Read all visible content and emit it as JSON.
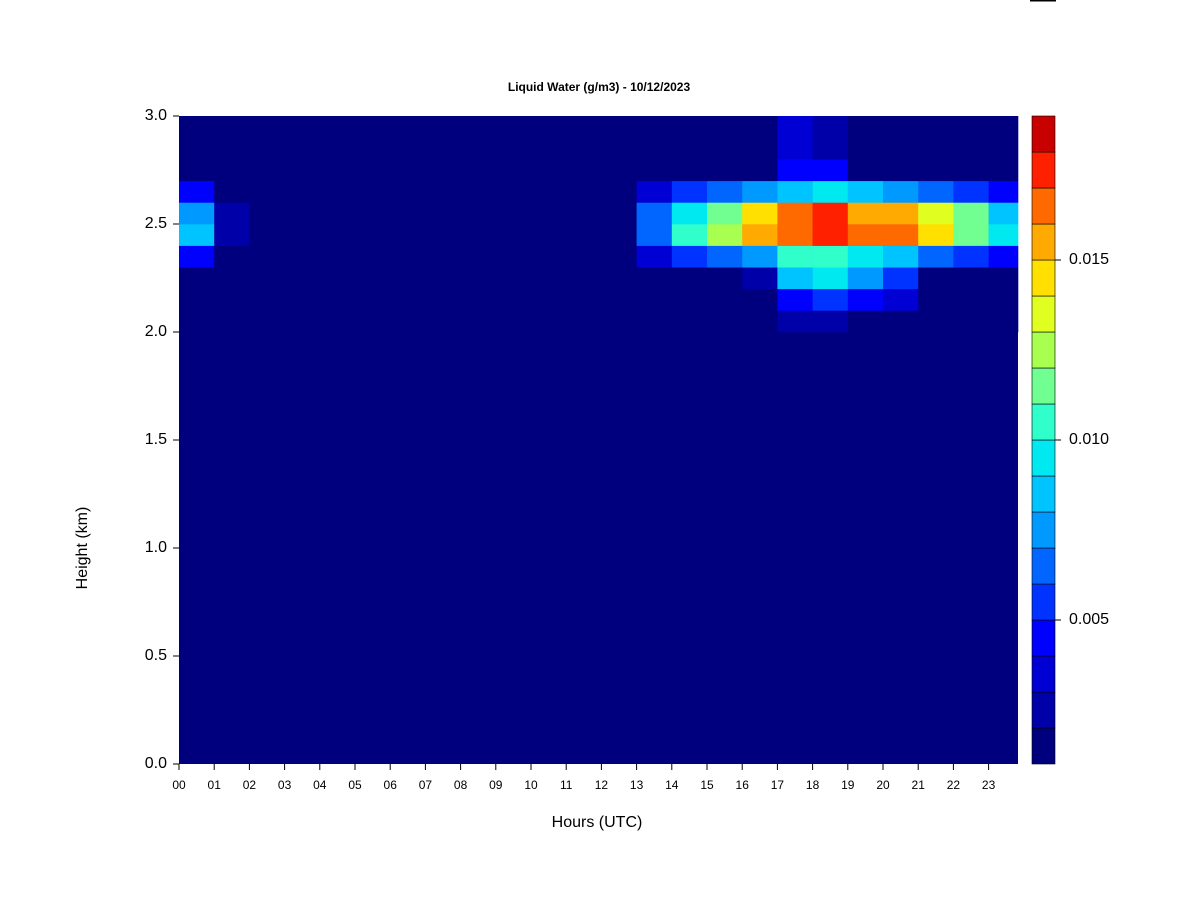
{
  "chart_data": {
    "type": "heatmap",
    "title": "Liquid Water (g/m3) - 10/12/2023",
    "xlabel": "Hours (UTC)",
    "ylabel": "Height (km)",
    "xlim": [
      0,
      23.85
    ],
    "ylim": [
      0,
      3
    ],
    "xticks": [
      {
        "value": 0,
        "label": "00"
      },
      {
        "value": 1,
        "label": "01"
      },
      {
        "value": 2,
        "label": "02"
      },
      {
        "value": 3,
        "label": "03"
      },
      {
        "value": 4,
        "label": "04"
      },
      {
        "value": 5,
        "label": "05"
      },
      {
        "value": 6,
        "label": "06"
      },
      {
        "value": 7,
        "label": "07"
      },
      {
        "value": 8,
        "label": "08"
      },
      {
        "value": 9,
        "label": "09"
      },
      10,
      11,
      12,
      13,
      14,
      15,
      16,
      17,
      18,
      19,
      20,
      21,
      22,
      23
    ],
    "yticks": [
      {
        "value": 0,
        "label": "0.0"
      },
      0.5,
      {
        "value": 1,
        "label": "1.0"
      },
      1.5,
      {
        "value": 2,
        "label": "2.0"
      },
      2.5,
      {
        "value": 3,
        "label": "3.0"
      }
    ],
    "xbins": [
      0,
      1,
      2,
      3,
      4,
      5,
      6,
      7,
      8,
      9,
      10,
      11,
      12,
      13,
      14,
      15,
      16,
      17,
      18,
      19,
      20,
      21,
      22,
      23,
      23.85
    ],
    "ybins": [
      2.0,
      2.1,
      2.2,
      2.3,
      2.4,
      2.5,
      2.6,
      2.7,
      2.8,
      2.9,
      3.0
    ],
    "z": [
      [
        0,
        0,
        0,
        0,
        0,
        0,
        0,
        0,
        0,
        0,
        0,
        0,
        0,
        0,
        0,
        0,
        0,
        0.002,
        0.002,
        0.0015,
        0.0015,
        0,
        0,
        0
      ],
      [
        0,
        0,
        0,
        0,
        0,
        0,
        0,
        0,
        0,
        0,
        0,
        0,
        0,
        0,
        0,
        0,
        0,
        0.004,
        0.005,
        0.004,
        0.003,
        0,
        0,
        0
      ],
      [
        0,
        0,
        0,
        0,
        0,
        0,
        0,
        0,
        0,
        0,
        0,
        0,
        0,
        0,
        0.0015,
        0.0015,
        0.002,
        0.008,
        0.009,
        0.007,
        0.005,
        0.0015,
        0.0015,
        0.0015
      ],
      [
        0.004,
        0.001,
        0,
        0,
        0,
        0,
        0,
        0,
        0,
        0,
        0,
        0,
        0,
        0.003,
        0.005,
        0.006,
        0.007,
        0.01,
        0.01,
        0.009,
        0.008,
        0.006,
        0.005,
        0.004
      ],
      [
        0.008,
        0.002,
        0,
        0,
        0,
        0,
        0,
        0,
        0,
        0,
        0,
        0,
        0,
        0.006,
        0.01,
        0.012,
        0.015,
        0.016,
        0.017,
        0.016,
        0.016,
        0.014,
        0.011,
        0.009
      ],
      [
        0.007,
        0.002,
        0,
        0,
        0,
        0,
        0,
        0,
        0,
        0,
        0,
        0,
        0,
        0.006,
        0.009,
        0.011,
        0.014,
        0.016,
        0.017,
        0.015,
        0.015,
        0.013,
        0.011,
        0.008
      ],
      [
        0.004,
        0.001,
        0,
        0,
        0,
        0,
        0,
        0,
        0,
        0,
        0,
        0,
        0,
        0.003,
        0.005,
        0.006,
        0.007,
        0.008,
        0.009,
        0.008,
        0.007,
        0.006,
        0.005,
        0.004
      ],
      [
        0,
        0,
        0,
        0,
        0,
        0,
        0,
        0,
        0,
        0,
        0,
        0,
        0,
        0.0012,
        0.0015,
        0.0015,
        0.0015,
        0.004,
        0.004,
        0.0015,
        0.0015,
        0.0012,
        0.0012,
        0.0012
      ],
      [
        0,
        0,
        0,
        0,
        0,
        0,
        0,
        0,
        0,
        0,
        0,
        0,
        0,
        0,
        0,
        0,
        0,
        0.003,
        0.002,
        0,
        0,
        0,
        0,
        0
      ],
      [
        0,
        0,
        0,
        0,
        0,
        0,
        0,
        0,
        0,
        0,
        0,
        0,
        0,
        0,
        0,
        0,
        0,
        0.003,
        0.002,
        0,
        0,
        0,
        0,
        0
      ]
    ],
    "levels": [
      0.001,
      0.002,
      0.003,
      0.004,
      0.005,
      0.006,
      0.007,
      0.008,
      0.009,
      0.01,
      0.011,
      0.012,
      0.013,
      0.014,
      0.015,
      0.016,
      0.017,
      0.018,
      0.019
    ],
    "colors": [
      "#00007f",
      "#0000a8",
      "#0000d4",
      "#0000ff",
      "#0033ff",
      "#0066ff",
      "#0099ff",
      "#00c4ff",
      "#00e8f0",
      "#30ffcc",
      "#70ff90",
      "#a8ff50",
      "#e0ff20",
      "#ffe000",
      "#ffaa00",
      "#ff6a00",
      "#ff2000",
      "#c80000",
      "#800000"
    ],
    "cbticks": [
      0.005,
      {
        "value": 0.01,
        "label": "0.010"
      },
      0.015
    ]
  }
}
